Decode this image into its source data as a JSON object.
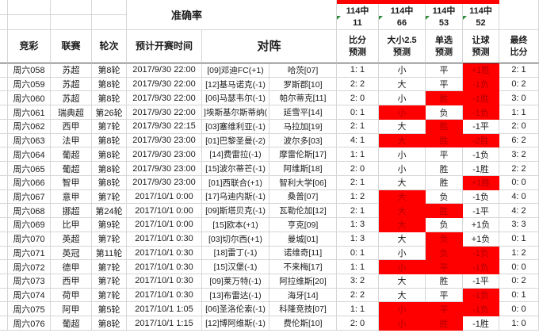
{
  "accuracy": {
    "title": "准确率",
    "cols": [
      {
        "label": "114中",
        "value": "11"
      },
      {
        "label": "114中",
        "value": "66"
      },
      {
        "label": "114中",
        "value": "53"
      },
      {
        "label": "114中",
        "value": "52"
      }
    ]
  },
  "columns": {
    "jc": "竞彩",
    "league": "联赛",
    "round": "轮次",
    "time": "预计开赛时间",
    "match": "对阵",
    "score_pred": "比分\n预测",
    "ou_pred": "大小2.5\n预测",
    "single_pred": "单选\n预测",
    "handicap_pred": "让球\n预测",
    "final_score": "最终\n比分"
  },
  "colors": {
    "highlight_bg": "#ff0000",
    "highlight_text": "#b30000",
    "grid_line": "#d6d6d6"
  },
  "table": {
    "rows": [
      {
        "jc": "周六058",
        "league": "苏超",
        "round": "第8轮",
        "time": "2017/9/30 22:00",
        "home": "[09]邓迪FC(+1)",
        "away": "哈茨[07]",
        "score_pred": "1: 1",
        "ou_pred": {
          "text": "小",
          "hit": false
        },
        "single_pred": {
          "text": "平",
          "hit": false
        },
        "handicap_pred": {
          "text": "+1胜",
          "hit": true
        },
        "final_score": "2: 1"
      },
      {
        "jc": "周六059",
        "league": "苏超",
        "round": "第8轮",
        "time": "2017/9/30 22:00",
        "home": "[12]基马诺克(-1)",
        "away": "罗斯郡[10]",
        "score_pred": "2: 2",
        "ou_pred": {
          "text": "大",
          "hit": false
        },
        "single_pred": {
          "text": "平",
          "hit": false
        },
        "handicap_pred": {
          "text": "-1负",
          "hit": true
        },
        "final_score": "0: 2"
      },
      {
        "jc": "周六060",
        "league": "苏超",
        "round": "第8轮",
        "time": "2017/9/30 22:00",
        "home": "[06]马瑟韦尔(-1)",
        "away": "帕尔蒂克[11]",
        "score_pred": "2: 0",
        "ou_pred": {
          "text": "小",
          "hit": false
        },
        "single_pred": {
          "text": "胜",
          "hit": true
        },
        "handicap_pred": {
          "text": "-1胜",
          "hit": true
        },
        "final_score": "3: 0"
      },
      {
        "jc": "周六061",
        "league": "瑞典超",
        "round": "第26轮",
        "time": "2017/9/30 22:00",
        "home": "]埃斯基尔斯蒂纳(",
        "away": "延雪平[14]",
        "score_pred": "0: 1",
        "ou_pred": {
          "text": "小",
          "hit": true
        },
        "single_pred": {
          "text": "负",
          "hit": false
        },
        "handicap_pred": {
          "text": "-1负",
          "hit": true
        },
        "final_score": "1: 1"
      },
      {
        "jc": "周六062",
        "league": "西甲",
        "round": "第7轮",
        "time": "2017/9/30 22:15",
        "home": "[03]塞维利亚(-1)",
        "away": "马拉加[19]",
        "score_pred": "2: 1",
        "ou_pred": {
          "text": "大",
          "hit": false
        },
        "single_pred": {
          "text": "胜",
          "hit": true
        },
        "handicap_pred": {
          "text": "-1平",
          "hit": false
        },
        "final_score": "2: 0"
      },
      {
        "jc": "周六063",
        "league": "法甲",
        "round": "第8轮",
        "time": "2017/9/30 23:00",
        "home": "[01]巴黎圣曼(-2)",
        "away": "波尔多[03]",
        "score_pred": "4: 1",
        "ou_pred": {
          "text": "大",
          "hit": true
        },
        "single_pred": {
          "text": "胜",
          "hit": true
        },
        "handicap_pred": {
          "text": "-2胜",
          "hit": true
        },
        "final_score": "6: 2"
      },
      {
        "jc": "周六064",
        "league": "葡超",
        "round": "第8轮",
        "time": "2017/9/30 23:00",
        "home": "[14]费雷拉(-1)",
        "away": "摩雷伦斯[17]",
        "score_pred": "1: 1",
        "ou_pred": {
          "text": "小",
          "hit": false
        },
        "single_pred": {
          "text": "平",
          "hit": false
        },
        "handicap_pred": {
          "text": "-1负",
          "hit": false
        },
        "final_score": "3: 2"
      },
      {
        "jc": "周六065",
        "league": "葡超",
        "round": "第8轮",
        "time": "2017/9/30 23:00",
        "home": "[15]波尔蒂芒(-1)",
        "away": "阿维斯[18]",
        "score_pred": "2: 0",
        "ou_pred": {
          "text": "小",
          "hit": false
        },
        "single_pred": {
          "text": "胜",
          "hit": false
        },
        "handicap_pred": {
          "text": "-1胜",
          "hit": false
        },
        "final_score": "2: 2"
      },
      {
        "jc": "周六066",
        "league": "智甲",
        "round": "第8轮",
        "time": "2017/9/30 23:00",
        "home": "[01]西联合(+1)",
        "away": "智利大学[06]",
        "score_pred": "2: 1",
        "ou_pred": {
          "text": "大",
          "hit": false
        },
        "single_pred": {
          "text": "胜",
          "hit": false
        },
        "handicap_pred": {
          "text": "+1胜",
          "hit": true
        },
        "final_score": "0: 0"
      },
      {
        "jc": "周六067",
        "league": "意甲",
        "round": "第7轮",
        "time": "2017/10/1 0:00",
        "home": "[17]乌迪内斯(-1)",
        "away": "桑普[07]",
        "score_pred": "1: 2",
        "ou_pred": {
          "text": "大",
          "hit": true
        },
        "single_pred": {
          "text": "负",
          "hit": false
        },
        "handicap_pred": {
          "text": "-1负",
          "hit": false
        },
        "final_score": "4: 0"
      },
      {
        "jc": "周六068",
        "league": "挪超",
        "round": "第24轮",
        "time": "2017/10/1 0:00",
        "home": "[09]斯塔贝克(-1)",
        "away": "瓦勒伦加[12]",
        "score_pred": "2: 1",
        "ou_pred": {
          "text": "大",
          "hit": true
        },
        "single_pred": {
          "text": "胜",
          "hit": true
        },
        "handicap_pred": {
          "text": "-1平",
          "hit": false
        },
        "final_score": "4: 2"
      },
      {
        "jc": "周六069",
        "league": "比甲",
        "round": "第9轮",
        "time": "2017/10/1 0:00",
        "home": "[15]欧本(+1)",
        "away": "亨克[09]",
        "score_pred": "1: 3",
        "ou_pred": {
          "text": "大",
          "hit": true
        },
        "single_pred": {
          "text": "负",
          "hit": false
        },
        "handicap_pred": {
          "text": "+1负",
          "hit": false
        },
        "final_score": "3: 3"
      },
      {
        "jc": "周六070",
        "league": "英超",
        "round": "第7轮",
        "time": "2017/10/1 0:30",
        "home": "[03]切尔西(+1)",
        "away": "曼城[01]",
        "score_pred": "1: 3",
        "ou_pred": {
          "text": "大",
          "hit": false
        },
        "single_pred": {
          "text": "负",
          "hit": true
        },
        "handicap_pred": {
          "text": "+1负",
          "hit": false
        },
        "final_score": "0: 1"
      },
      {
        "jc": "周六071",
        "league": "英冠",
        "round": "第11轮",
        "time": "2017/10/1 0:30",
        "home": "[18]雷丁(-1)",
        "away": "诺维奇[11]",
        "score_pred": "0: 1",
        "ou_pred": {
          "text": "小",
          "hit": false
        },
        "single_pred": {
          "text": "负",
          "hit": true
        },
        "handicap_pred": {
          "text": "-1负",
          "hit": true
        },
        "final_score": "1: 2"
      },
      {
        "jc": "周六072",
        "league": "德甲",
        "round": "第7轮",
        "time": "2017/10/1 0:30",
        "home": "[15]汉堡(-1)",
        "away": "不来梅[17]",
        "score_pred": "1: 1",
        "ou_pred": {
          "text": "小",
          "hit": true
        },
        "single_pred": {
          "text": "平",
          "hit": true
        },
        "handicap_pred": {
          "text": "-1负",
          "hit": true
        },
        "final_score": "0: 0"
      },
      {
        "jc": "周六073",
        "league": "西甲",
        "round": "第7轮",
        "time": "2017/10/1 0:30",
        "home": "[09]莱万特(-1)",
        "away": "阿拉维斯[20]",
        "score_pred": "3: 2",
        "ou_pred": {
          "text": "大",
          "hit": false
        },
        "single_pred": {
          "text": "胜",
          "hit": false
        },
        "handicap_pred": {
          "text": "-1平",
          "hit": false
        },
        "final_score": "0: 2"
      },
      {
        "jc": "周六074",
        "league": "荷甲",
        "round": "第7轮",
        "time": "2017/10/1 0:30",
        "home": "[13]布雷达(-1)",
        "away": "海牙[14]",
        "score_pred": "2: 2",
        "ou_pred": {
          "text": "大",
          "hit": false
        },
        "single_pred": {
          "text": "平",
          "hit": false
        },
        "handicap_pred": {
          "text": "-1负",
          "hit": true
        },
        "final_score": "0: 1"
      },
      {
        "jc": "周六075",
        "league": "阿甲",
        "round": "第5轮",
        "time": "2017/10/1 1:05",
        "home": "[06]圣洛伦索(-1)",
        "away": "科隆竞技[07]",
        "score_pred": "1: 1",
        "ou_pred": {
          "text": "小",
          "hit": true
        },
        "single_pred": {
          "text": "平",
          "hit": true
        },
        "handicap_pred": {
          "text": "-1负",
          "hit": true
        },
        "final_score": "0: 0"
      },
      {
        "jc": "周六076",
        "league": "葡超",
        "round": "第8轮",
        "time": "2017/10/1 1:15",
        "home": "[12]博阿维斯(-1)",
        "away": "费伦斯[10]",
        "score_pred": "2: 0",
        "ou_pred": {
          "text": "小",
          "hit": true
        },
        "single_pred": {
          "text": "胜",
          "hit": true
        },
        "handicap_pred": {
          "text": "-1胜",
          "hit": false
        },
        "final_score": "1: 0"
      }
    ]
  }
}
